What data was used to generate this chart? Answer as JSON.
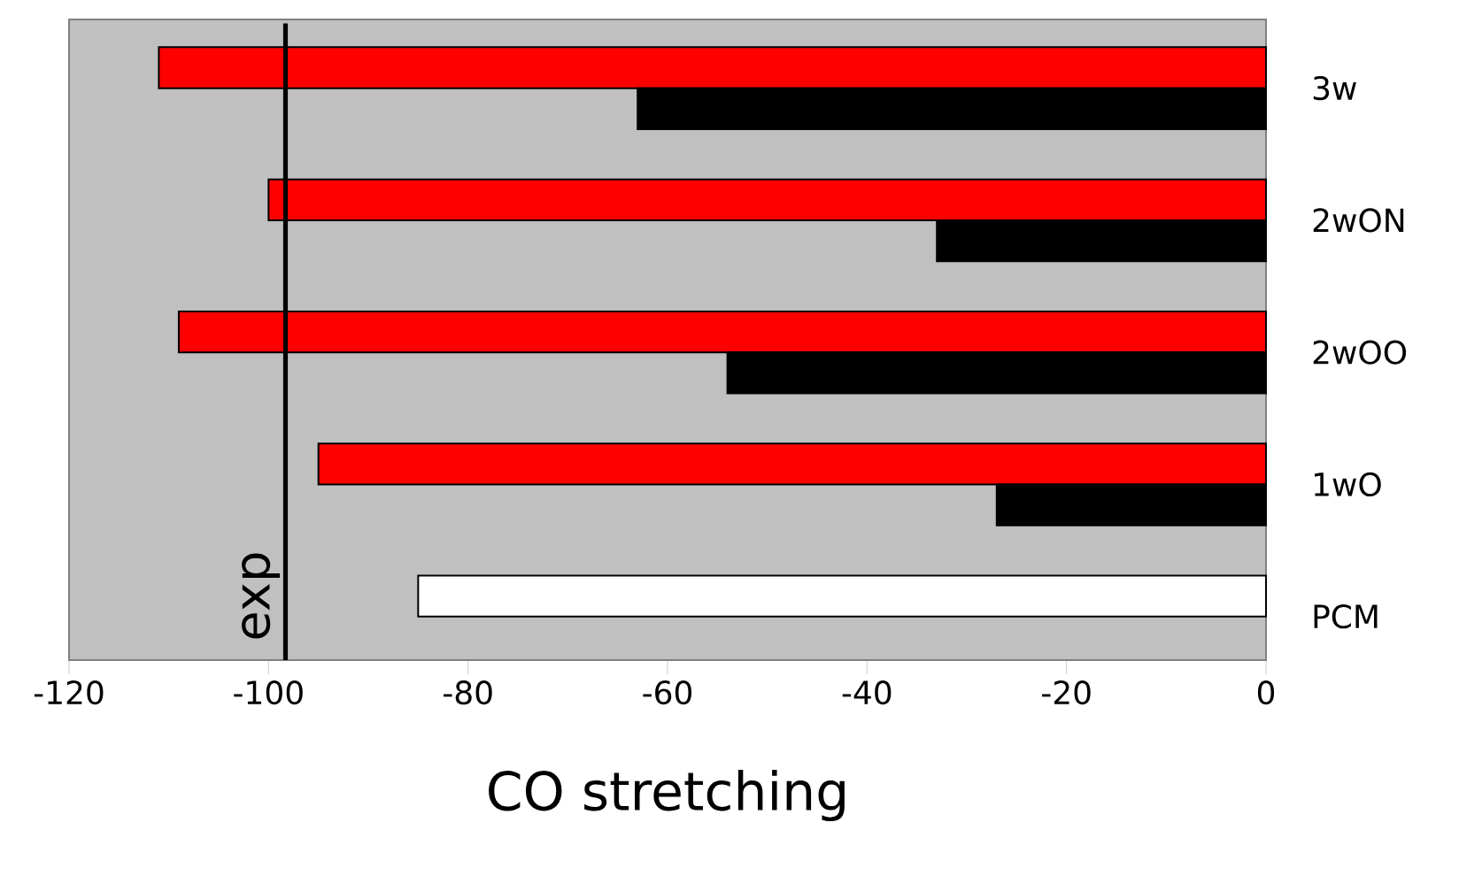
{
  "chart_data": {
    "type": "bar",
    "orientation": "horizontal",
    "xlabel": "CO stretching",
    "categories": [
      "3w",
      "2wON",
      "2wOO",
      "1wO",
      "PCM"
    ],
    "series": [
      {
        "colors": [
          "#ff0000",
          "#ff0000",
          "#ff0000",
          "#ff0000",
          "#ffffff"
        ],
        "values": [
          -111,
          -100,
          -109,
          -95,
          -85
        ]
      },
      {
        "color": "#000000",
        "values": [
          -63,
          -33,
          -54,
          -27,
          null
        ]
      }
    ],
    "xlim": [
      -120,
      0
    ],
    "xticks": [
      -120,
      -100,
      -80,
      -60,
      -40,
      -20,
      0
    ],
    "ref_lines": [
      {
        "axis": "x",
        "value": -98.3,
        "label": "exp",
        "color": "#000000"
      }
    ]
  }
}
